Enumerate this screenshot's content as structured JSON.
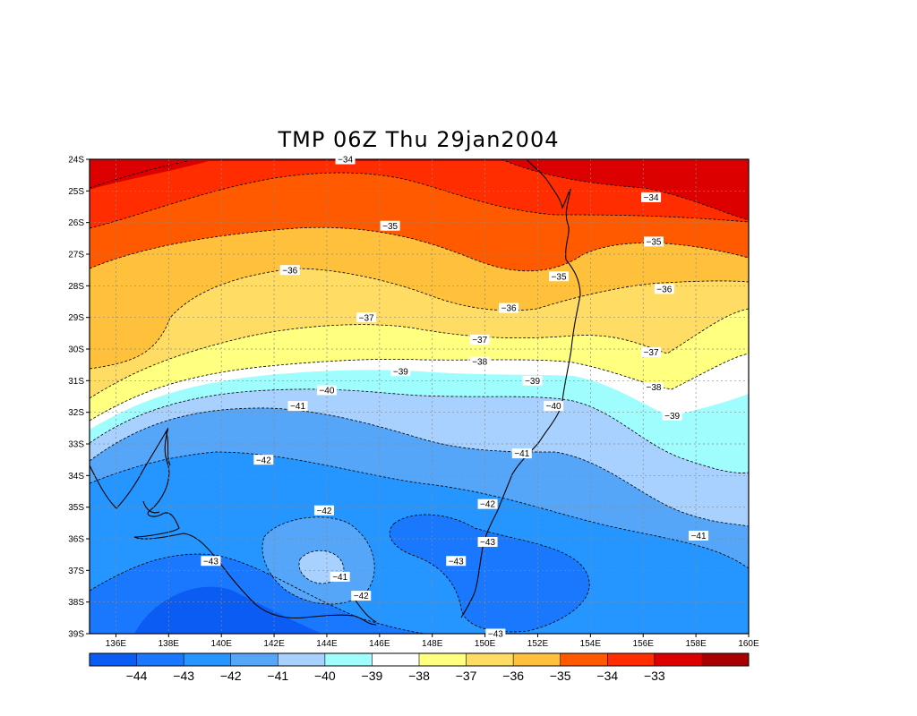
{
  "title": "TMP 06Z Thu 29jan2004",
  "map": {
    "lon_range": [
      135,
      160
    ],
    "lat_range": [
      -39,
      -24
    ],
    "lon_ticks": [
      "136E",
      "138E",
      "140E",
      "142E",
      "144E",
      "146E",
      "148E",
      "150E",
      "152E",
      "154E",
      "156E",
      "158E",
      "160E"
    ],
    "lat_ticks": [
      "24S",
      "25S",
      "26S",
      "27S",
      "28S",
      "29S",
      "30S",
      "31S",
      "32S",
      "33S",
      "34S",
      "35S",
      "36S",
      "37S",
      "38S",
      "39S"
    ],
    "grid": true,
    "contour_labels": [
      {
        "text": "-34",
        "lon": 144.7,
        "lat": -24.0
      },
      {
        "text": "-34",
        "lon": 156.3,
        "lat": -25.2
      },
      {
        "text": "-35",
        "lon": 146.4,
        "lat": -26.1
      },
      {
        "text": "-35",
        "lon": 156.4,
        "lat": -26.6
      },
      {
        "text": "-35",
        "lon": 152.8,
        "lat": -27.7
      },
      {
        "text": "-36",
        "lon": 142.6,
        "lat": -27.5
      },
      {
        "text": "-36",
        "lon": 156.8,
        "lat": -28.1
      },
      {
        "text": "-36",
        "lon": 150.9,
        "lat": -28.7
      },
      {
        "text": "-37",
        "lon": 145.5,
        "lat": -29.0
      },
      {
        "text": "-37",
        "lon": 149.8,
        "lat": -29.7
      },
      {
        "text": "-37",
        "lon": 156.3,
        "lat": -30.1
      },
      {
        "text": "-38",
        "lon": 149.8,
        "lat": -30.4
      },
      {
        "text": "-38",
        "lon": 156.4,
        "lat": -31.2
      },
      {
        "text": "-39",
        "lon": 146.8,
        "lat": -30.7
      },
      {
        "text": "-39",
        "lon": 151.8,
        "lat": -31.0
      },
      {
        "text": "-39",
        "lon": 157.1,
        "lat": -32.1
      },
      {
        "text": "-40",
        "lon": 144.0,
        "lat": -31.3
      },
      {
        "text": "-40",
        "lon": 152.6,
        "lat": -31.8
      },
      {
        "text": "-41",
        "lon": 142.9,
        "lat": -31.8
      },
      {
        "text": "-41",
        "lon": 151.4,
        "lat": -33.3
      },
      {
        "text": "-41",
        "lon": 158.1,
        "lat": -35.9
      },
      {
        "text": "-42",
        "lon": 141.6,
        "lat": -33.5
      },
      {
        "text": "-42",
        "lon": 143.9,
        "lat": -35.1
      },
      {
        "text": "-42",
        "lon": 150.1,
        "lat": -34.9
      },
      {
        "text": "-42",
        "lon": 145.3,
        "lat": -37.8
      },
      {
        "text": "-43",
        "lon": 139.6,
        "lat": -36.7
      },
      {
        "text": "-43",
        "lon": 150.1,
        "lat": -36.1
      },
      {
        "text": "-43",
        "lon": 148.9,
        "lat": -36.7
      },
      {
        "text": "-41",
        "lon": 144.5,
        "lat": -37.2
      },
      {
        "text": "-43",
        "lon": 150.4,
        "lat": -39.0
      }
    ]
  },
  "legend": {
    "colors": [
      "#0a5cf2",
      "#1a78ff",
      "#2596ff",
      "#55a5f8",
      "#a9d1ff",
      "#9ffdfe",
      "#ffffff",
      "#ffff80",
      "#ffdc64",
      "#ffc03c",
      "#ff5a00",
      "#ff2d00",
      "#dc0000",
      "#a80000"
    ],
    "labels": [
      "-44",
      "-43",
      "-42",
      "-41",
      "-40",
      "-39",
      "-38",
      "-37",
      "-36",
      "-35",
      "-34",
      "-33"
    ]
  }
}
